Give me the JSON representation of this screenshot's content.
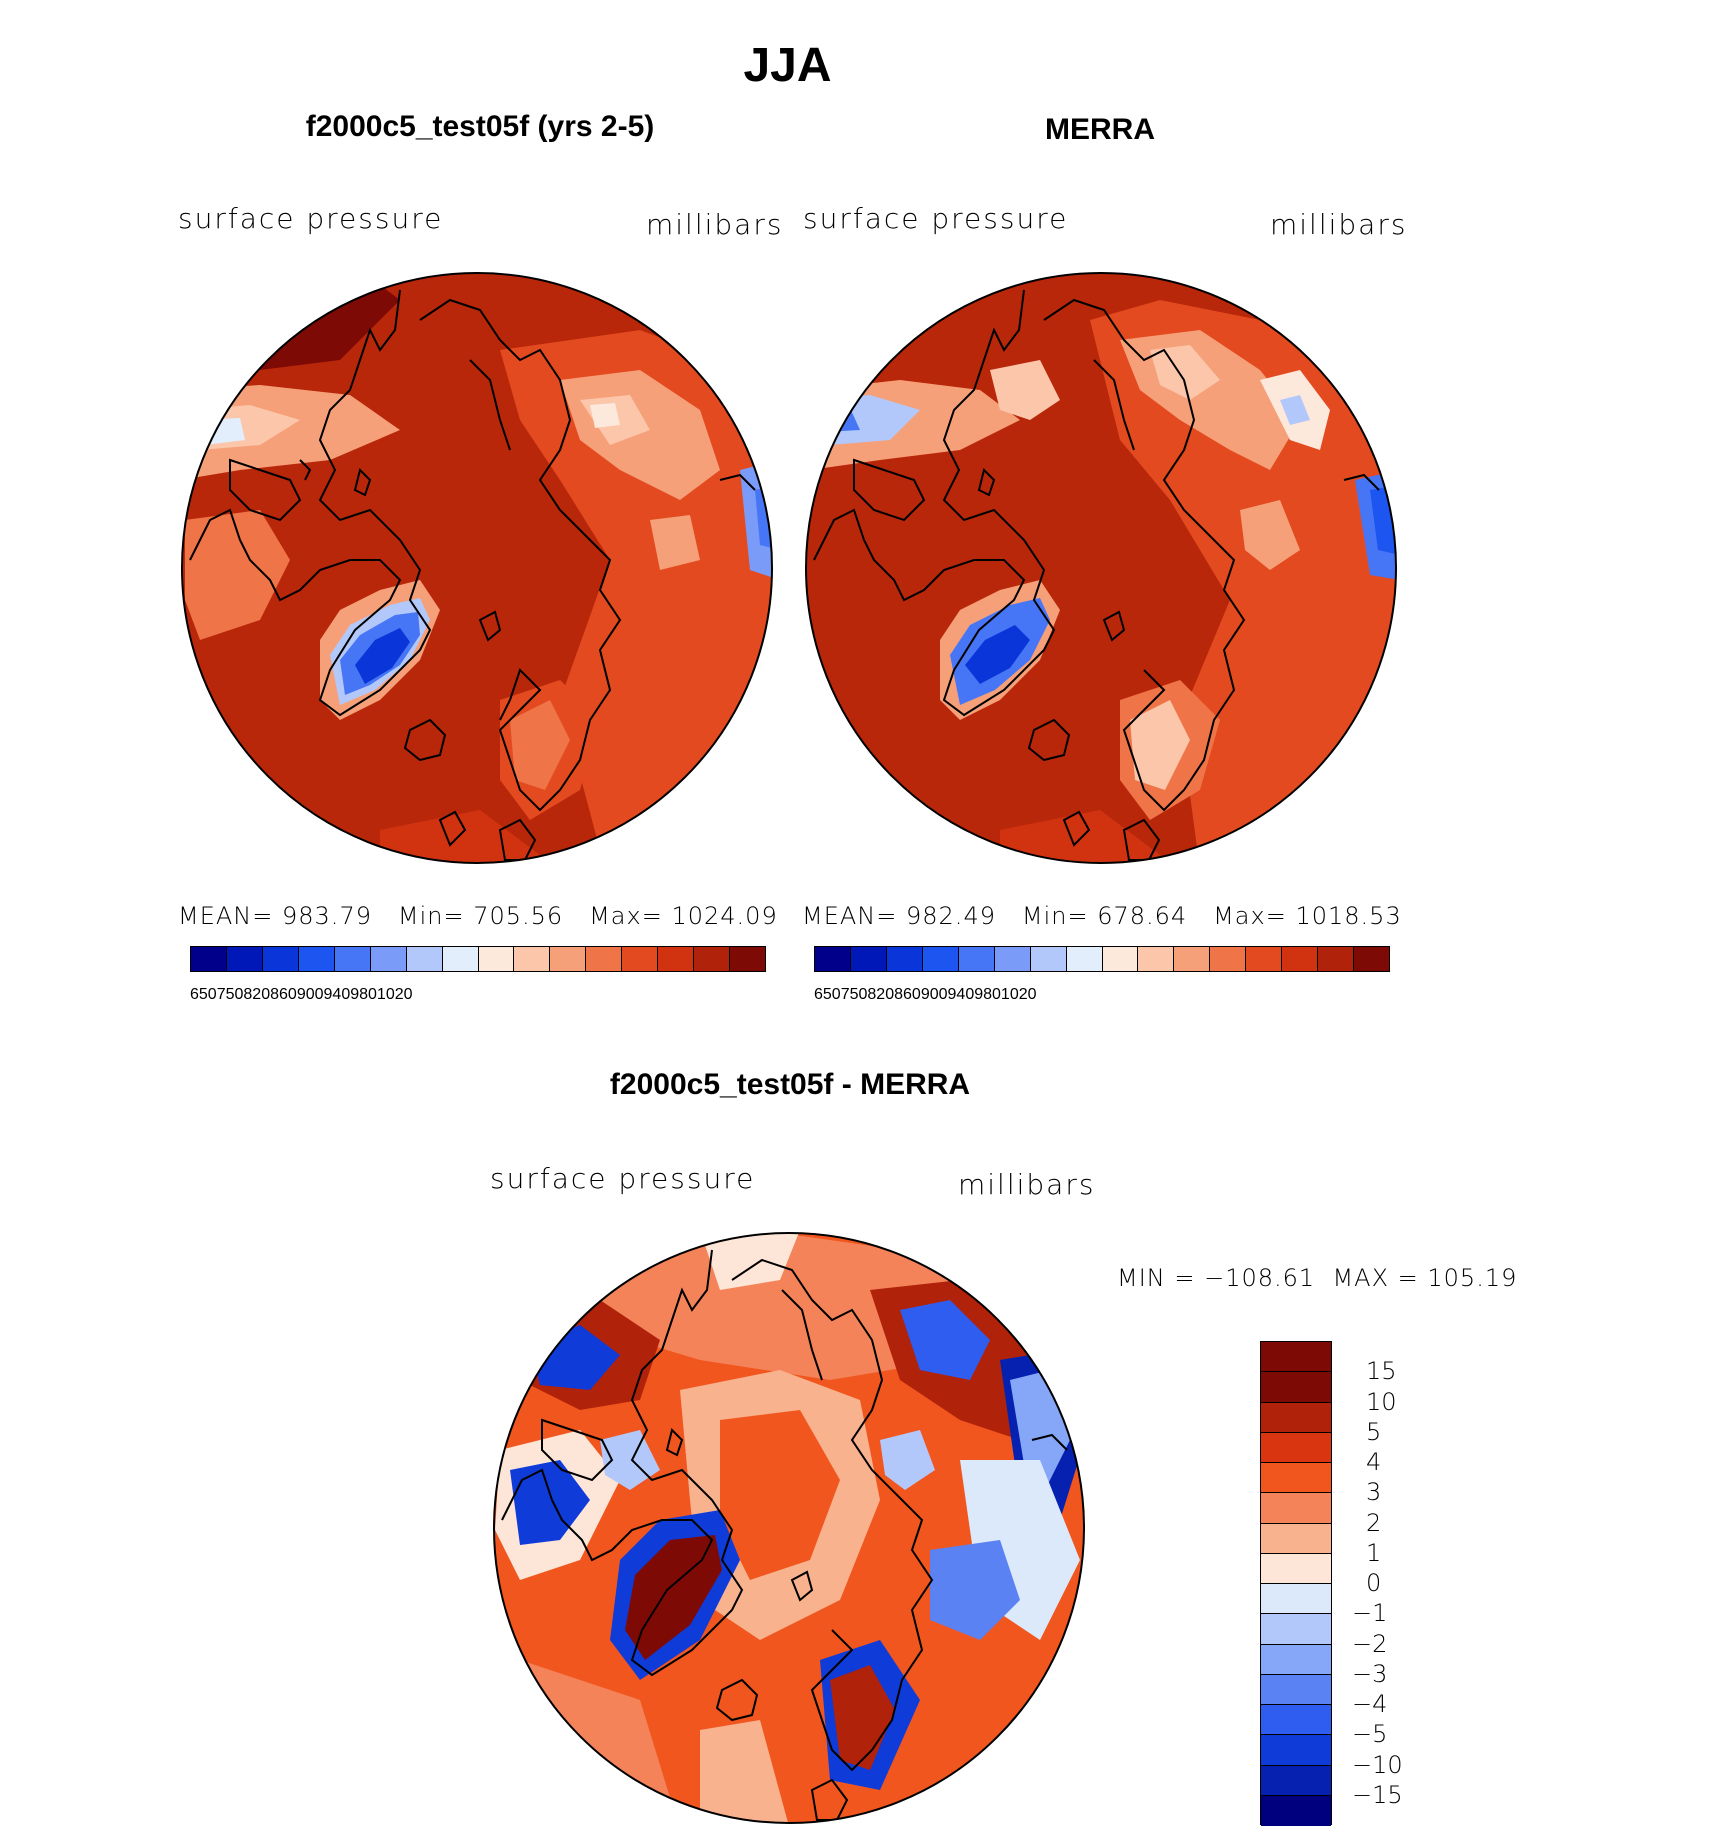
{
  "figure": {
    "title": "JJA"
  },
  "panels": [
    {
      "title": "f2000c5_test05f (yrs 2-5)",
      "variable": "surface pressure",
      "units": "millibars",
      "stats": {
        "mean_label": "MEAN=",
        "mean": "983.79",
        "min_label": "Min=",
        "min": "705.56",
        "max_label": "Max=",
        "max": "1024.09"
      }
    },
    {
      "title": "MERRA",
      "variable": "surface pressure",
      "units": "millibars",
      "stats": {
        "mean_label": "MEAN=",
        "mean": "982.49",
        "min_label": "Min=",
        "min": "678.64",
        "max_label": "Max=",
        "max": "1018.53"
      }
    }
  ],
  "abs_colorbar": {
    "colors": [
      "#00008b",
      "#0018b8",
      "#0a35d8",
      "#1d55f0",
      "#4676f5",
      "#7a9cf8",
      "#b3c8fa",
      "#e3eefc",
      "#fde8dc",
      "#fbc6aa",
      "#f6a07a",
      "#ef7448",
      "#e44a1f",
      "#d13310",
      "#b0220a",
      "#7e0a05"
    ],
    "tick_labels": [
      "650",
      "750",
      "820",
      "860",
      "900",
      "940",
      "980",
      "1020"
    ]
  },
  "diff_panel": {
    "title": "f2000c5_test05f - MERRA",
    "variable": "surface pressure",
    "units": "millibars",
    "range_text": "MIN = −108.61  MAX = 105.19"
  },
  "diff_colorbar": {
    "colors": [
      "#7e0a05",
      "#b0220a",
      "#d93510",
      "#f0561e",
      "#f5835a",
      "#f9b28e",
      "#fde6d8",
      "#dbe9fb",
      "#b3c8fa",
      "#86a6f7",
      "#5a82f3",
      "#2f5df0",
      "#0f3bd9",
      "#0620b0",
      "#00007f"
    ],
    "tick_labels": [
      "15",
      "10",
      "5",
      "4",
      "3",
      "2",
      "1",
      "0",
      "−1",
      "−2",
      "−3",
      "−4",
      "−5",
      "−10",
      "−15"
    ]
  },
  "colors": {
    "land_base": "#c22b0b",
    "ocean_base": "#b8260a",
    "coastline": "#000000"
  }
}
